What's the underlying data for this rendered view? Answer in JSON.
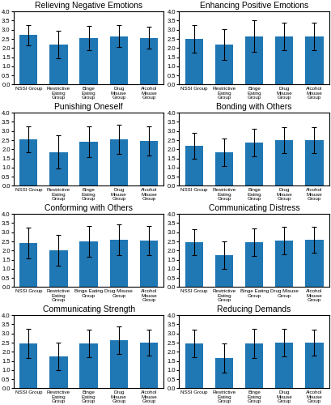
{
  "chart_data": [
    {
      "type": "bar",
      "title": "Relieving Negative Emotions",
      "categories": [
        "NSSI Group",
        "Restrictive\nEating\nGroup",
        "Binge\nEating\nGroup",
        "Drug\nMisuse\nGroup",
        "Alcohol\nMisuse\nGroup"
      ],
      "values": [
        2.7,
        2.2,
        2.55,
        2.65,
        2.55
      ],
      "errors": [
        0.55,
        0.75,
        0.65,
        0.6,
        0.6
      ],
      "ylim": [
        0,
        4
      ],
      "yticks": [
        {
          "value": 0,
          "label": "0.0"
        },
        0.5,
        {
          "value": 1,
          "label": "1.0"
        },
        1.5,
        {
          "value": 2,
          "label": "2.0"
        },
        2.5,
        {
          "value": 3,
          "label": "3.0"
        },
        3.5,
        {
          "value": 4,
          "label": "4.0"
        }
      ],
      "grid": false
    },
    {
      "type": "bar",
      "title": "Enhancing Positive Emotions",
      "categories": [
        "NSSI Group",
        "Restrictive\nEating\nGroup",
        "Binge\nEating\nGroup",
        "Drug\nMisuse\nGroup",
        "Alcohol\nMisuse\nGroup"
      ],
      "values": [
        2.5,
        2.2,
        2.65,
        2.65,
        2.65
      ],
      "errors": [
        0.75,
        0.85,
        0.85,
        0.75,
        0.75
      ],
      "ylim": [
        0,
        4
      ],
      "yticks": [
        {
          "value": 0,
          "label": "0.0"
        },
        0.5,
        {
          "value": 1,
          "label": "1.0"
        },
        1.5,
        {
          "value": 2,
          "label": "2.0"
        },
        2.5,
        {
          "value": 3,
          "label": "3.0"
        },
        3.5,
        {
          "value": 4,
          "label": "4.0"
        }
      ],
      "grid": false
    },
    {
      "type": "bar",
      "title": "Punishing Oneself",
      "categories": [
        "NSSI Group",
        "Restrictive\nEating\nGroup",
        "Binge\nEating\nGroup",
        "Drug\nMisuse\nGroup",
        "Alcohol\nMisuse\nGroup"
      ],
      "values": [
        2.55,
        1.85,
        2.4,
        2.55,
        2.45
      ],
      "errors": [
        0.7,
        0.9,
        0.85,
        0.8,
        0.8
      ],
      "ylim": [
        0,
        4
      ],
      "yticks": [
        {
          "value": 0,
          "label": "0.0"
        },
        0.5,
        {
          "value": 1,
          "label": "1.0"
        },
        1.5,
        {
          "value": 2,
          "label": "2.0"
        },
        2.5,
        {
          "value": 3,
          "label": "3.0"
        },
        3.5,
        {
          "value": 4,
          "label": "4.0"
        }
      ],
      "grid": false
    },
    {
      "type": "bar",
      "title": "Bonding with Others",
      "categories": [
        "NSSI Group",
        "Restrictive\nEating\nGroup",
        "Binge\nEating\nGroup",
        "Drug\nMisuse\nGroup",
        "Alcohol\nMisuse\nGroup"
      ],
      "values": [
        2.2,
        1.85,
        2.35,
        2.5,
        2.5
      ],
      "errors": [
        0.7,
        0.75,
        0.75,
        0.7,
        0.7
      ],
      "ylim": [
        0,
        4
      ],
      "yticks": [
        {
          "value": 0,
          "label": "0.0"
        },
        0.5,
        {
          "value": 1,
          "label": "1.0"
        },
        1.5,
        {
          "value": 2,
          "label": "2.0"
        },
        2.5,
        {
          "value": 3,
          "label": "3.0"
        },
        3.5,
        {
          "value": 4,
          "label": "4.0"
        }
      ],
      "grid": false
    },
    {
      "type": "bar",
      "title": "Conforming with Others",
      "categories": [
        "NSSI Group",
        "Restrictive\nEating\nGroup",
        "Binge Eating\nGroup",
        "Drug Misuse\nGroup",
        "Alcohol\nMisuse\nGroup"
      ],
      "values": [
        2.4,
        2.0,
        2.5,
        2.6,
        2.55
      ],
      "errors": [
        0.85,
        0.85,
        0.85,
        0.85,
        0.8
      ],
      "ylim": [
        0,
        4
      ],
      "yticks": [
        {
          "value": 0,
          "label": "0.0"
        },
        0.5,
        {
          "value": 1,
          "label": "1.0"
        },
        1.5,
        {
          "value": 2,
          "label": "2.0"
        },
        2.5,
        {
          "value": 3,
          "label": "3.0"
        },
        3.5,
        {
          "value": 4,
          "label": "4.0"
        }
      ],
      "grid": false
    },
    {
      "type": "bar",
      "title": "Communicating Distress",
      "categories": [
        "NSSI Group",
        "Restrictive\nEating\nGroup",
        "Binge Eating\nGroup",
        "Drug Misuse\nGroup",
        "Alcohol\nMisuse\nGroup"
      ],
      "values": [
        2.45,
        1.75,
        2.45,
        2.55,
        2.6
      ],
      "errors": [
        0.7,
        0.75,
        0.75,
        0.75,
        0.7
      ],
      "ylim": [
        0,
        4
      ],
      "yticks": [
        {
          "value": 0,
          "label": "0.0"
        },
        0.5,
        {
          "value": 1,
          "label": "1.0"
        },
        1.5,
        {
          "value": 2,
          "label": "2.0"
        },
        2.5,
        {
          "value": 3,
          "label": "3.0"
        },
        3.5,
        {
          "value": 4,
          "label": "4.0"
        }
      ],
      "grid": false
    },
    {
      "type": "bar",
      "title": "Communicating Strength",
      "categories": [
        "NSSI Group",
        "Restrictive\nEating\nGroup",
        "Binge\nEating\nGroup",
        "Drug\nMisuse\nGroup",
        "Alcohol\nMisuse\nGroup"
      ],
      "values": [
        2.45,
        1.75,
        2.45,
        2.65,
        2.5
      ],
      "errors": [
        0.8,
        0.75,
        0.75,
        0.75,
        0.7
      ],
      "ylim": [
        0,
        4
      ],
      "yticks": [
        {
          "value": 0,
          "label": "0.0"
        },
        0.5,
        {
          "value": 1,
          "label": "1.0"
        },
        1.5,
        {
          "value": 2,
          "label": "2.0"
        },
        2.5,
        {
          "value": 3,
          "label": "3.0"
        },
        3.5,
        {
          "value": 4,
          "label": "4.0"
        }
      ],
      "grid": false
    },
    {
      "type": "bar",
      "title": "Reducing Demands",
      "categories": [
        "NSSI Group",
        "Restrictive\nEating\nGroup",
        "Binge\nEating\nGroup",
        "Drug\nMisuse\nGroup",
        "Alcohol\nMisuse\nGroup"
      ],
      "values": [
        2.45,
        1.65,
        2.45,
        2.5,
        2.5
      ],
      "errors": [
        0.75,
        0.8,
        0.8,
        0.75,
        0.7
      ],
      "ylim": [
        0,
        4
      ],
      "yticks": [
        {
          "value": 0,
          "label": "0.0"
        },
        0.5,
        {
          "value": 1,
          "label": "1.0"
        },
        1.5,
        {
          "value": 2,
          "label": "2.0"
        },
        2.5,
        {
          "value": 3,
          "label": "3.0"
        },
        3.5,
        {
          "value": 4,
          "label": "4.0"
        }
      ],
      "grid": false
    }
  ]
}
